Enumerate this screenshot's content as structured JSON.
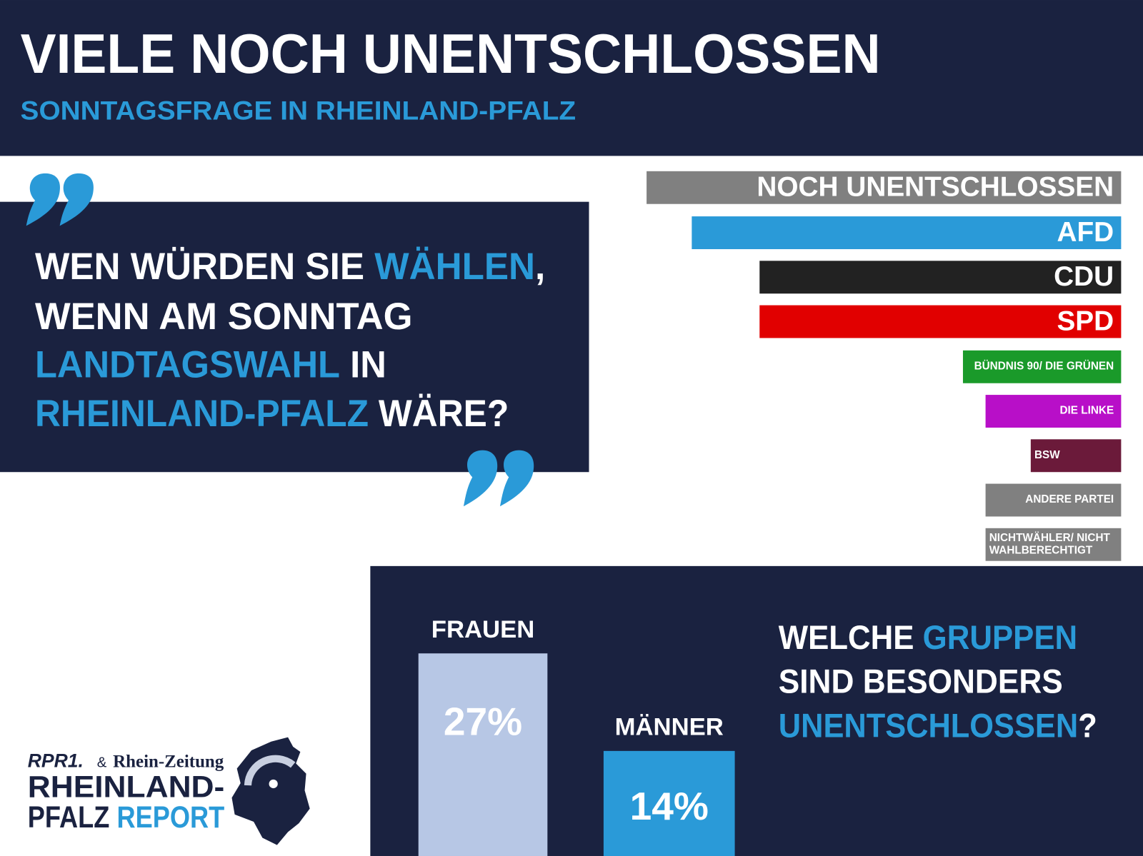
{
  "title": "VIELE NOCH UNENTSCHLOSSEN",
  "subtitle": "SONNTAGSFRAGE IN RHEINLAND-PFALZ",
  "question": [
    [
      {
        "text": "WEN WÜRDEN SIE "
      },
      {
        "text": "WÄHLEN",
        "highlight": true
      },
      {
        "text": ","
      }
    ],
    [
      {
        "text": "WENN AM SONNTAG"
      }
    ],
    [
      {
        "text": "LANDTAGSWAHL",
        "highlight": true
      },
      {
        "text": " IN"
      }
    ],
    [
      {
        "text": "RHEINLAND-PFALZ",
        "highlight": true
      },
      {
        "text": " WÄRE?"
      }
    ]
  ],
  "chart_data": [
    {
      "type": "bar",
      "orientation": "horizontal",
      "categories": [
        "NOCH UNENTSCHLOSSEN",
        "AFD",
        "CDU",
        "SPD",
        "BÜNDNIS 90/ DIE GRÜNEN",
        "DIE LINKE",
        "BSW",
        "ANDERE PARTEI",
        "NICHTWÄHLER/ NICHT WAHLBERECHTIGT"
      ],
      "values": [
        21,
        19,
        16,
        16,
        7,
        6,
        4,
        6,
        6
      ],
      "colors": [
        "#808080",
        "#2a9ad8",
        "#222222",
        "#e10000",
        "#1a9a2a",
        "#b80fc8",
        "#6b1a3a",
        "#808080",
        "#808080"
      ]
    },
    {
      "type": "bar",
      "orientation": "vertical",
      "title": [
        [
          {
            "text": "WELCHE "
          },
          {
            "text": "GRUPPEN",
            "highlight": true
          }
        ],
        [
          {
            "text": "SIND BESONDERS"
          }
        ],
        [
          {
            "text": "UNENTSCHLOSSEN",
            "highlight": true
          },
          {
            "text": "?"
          }
        ]
      ],
      "categories": [
        "FRAUEN",
        "MÄNNER"
      ],
      "values": [
        27,
        14
      ],
      "value_labels": [
        "27%",
        "14%"
      ],
      "colors": [
        "#b7c7e5",
        "#2a9ad8"
      ]
    }
  ],
  "logo": {
    "brand": "RPR1.",
    "and": "&",
    "paper": "Rhein-Zeitung",
    "line1": "RHEINLAND-",
    "line2a": "PFALZ ",
    "line2b": "REPORT"
  }
}
